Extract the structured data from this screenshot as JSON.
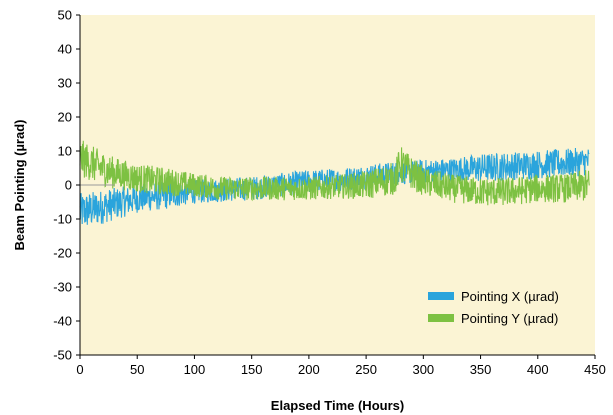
{
  "chart_data": {
    "type": "line",
    "xlabel": "Elapsed Time (Hours)",
    "ylabel": "Beam Pointing (µrad)",
    "xlim": [
      0,
      450
    ],
    "ylim": [
      -50,
      50
    ],
    "x_ticks": [
      0,
      50,
      100,
      150,
      200,
      250,
      300,
      350,
      400,
      450
    ],
    "y_ticks": [
      -50,
      -40,
      -30,
      -20,
      -10,
      0,
      10,
      20,
      30,
      40,
      50
    ],
    "x_tick_labels": [
      "0",
      "50",
      "100",
      "150",
      "200",
      "250",
      "300",
      "350",
      "400",
      "450"
    ],
    "y_tick_labels": [
      "-50",
      "-40",
      "-30",
      "-20",
      "-10",
      "0",
      "10",
      "20",
      "30",
      "40",
      "50"
    ],
    "plot_background": "#fbf4d4",
    "grid": false,
    "legend_position": "bottom-right",
    "series": [
      {
        "name": "Pointing X (µrad)",
        "color": "#2aa4dc",
        "x": [
          0,
          25,
          50,
          75,
          100,
          125,
          150,
          175,
          200,
          225,
          250,
          275,
          300,
          325,
          350,
          375,
          400,
          425,
          445
        ],
        "mean": [
          -8,
          -6,
          -4,
          -3,
          -2,
          -1.5,
          -1,
          0,
          1,
          1.5,
          2.5,
          3.5,
          4,
          4.5,
          5,
          5.5,
          6,
          6.5,
          7
        ],
        "spread": [
          4,
          3.5,
          3,
          3,
          2.5,
          2.5,
          2.5,
          2.5,
          2.5,
          2.5,
          2.5,
          2.5,
          2.5,
          2.5,
          3,
          3,
          3,
          3,
          3
        ]
      },
      {
        "name": "Pointing Y (µrad)",
        "color": "#7dc142",
        "x": [
          0,
          25,
          50,
          75,
          100,
          125,
          150,
          175,
          200,
          225,
          250,
          275,
          280,
          300,
          325,
          350,
          375,
          400,
          425,
          445
        ],
        "mean": [
          8,
          4,
          2,
          1,
          0,
          -1,
          -1,
          -1,
          -1,
          -0.5,
          0,
          2,
          6,
          1,
          -1,
          -2,
          -2,
          -1,
          -1,
          0
        ],
        "spread": [
          4,
          3.5,
          3,
          3,
          2.5,
          2.5,
          2.5,
          2.5,
          2.5,
          2.5,
          3,
          3.5,
          4,
          3,
          3,
          3,
          3,
          3,
          3,
          3.5
        ]
      }
    ]
  }
}
